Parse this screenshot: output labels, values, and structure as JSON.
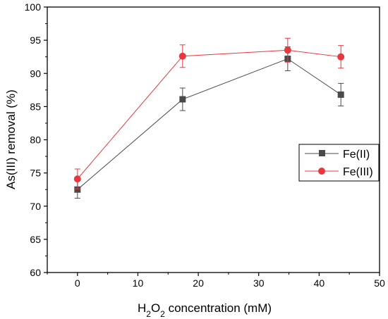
{
  "chart_data": {
    "type": "line",
    "xlabel": {
      "prefix": "H",
      "sub1": "2",
      "mid": "O",
      "sub2": "2",
      "suffix": " concentration (mM)"
    },
    "ylabel": "As(III) removal (%)",
    "xlim": [
      -5,
      50
    ],
    "ylim": [
      60,
      100
    ],
    "xticks": [
      0,
      10,
      20,
      30,
      40,
      50
    ],
    "yticks": [
      60,
      65,
      70,
      75,
      80,
      85,
      90,
      95,
      100
    ],
    "grid": false,
    "legend_position": "right-middle",
    "series": [
      {
        "name": "Fe(II)",
        "marker": "square",
        "color": "#4a4a4a",
        "x": [
          0,
          17.4,
          34.8,
          43.6
        ],
        "y": [
          72.5,
          86.1,
          92.2,
          86.8
        ],
        "err": [
          1.3,
          1.7,
          1.8,
          1.7
        ]
      },
      {
        "name": "Fe(III)",
        "marker": "circle",
        "color": "#e8373e",
        "x": [
          0,
          17.4,
          34.8,
          43.6
        ],
        "y": [
          74.1,
          92.6,
          93.5,
          92.5
        ],
        "err": [
          1.5,
          1.7,
          1.8,
          1.7
        ]
      }
    ]
  }
}
